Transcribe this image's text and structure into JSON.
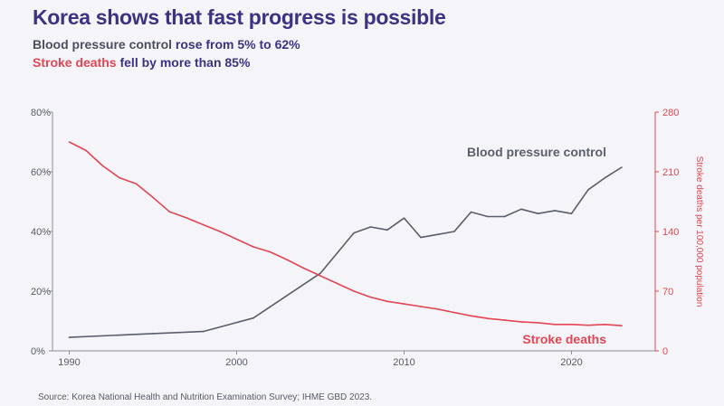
{
  "header": {
    "title": "Korea shows that fast progress is possible",
    "line1_series": "Blood pressure control",
    "line1_rest": " rose from 5% to 62%",
    "line2_series": "Stroke deaths",
    "line2_rest": " fell by more than 85%"
  },
  "source": "Source: Korea National Health and Nutrition Examination Survey; IHME GBD 2023.",
  "colors": {
    "bp": "#5a5e6c",
    "stroke": "#e24553",
    "title": "#3b3284",
    "axis": "#8a8d96"
  },
  "chart_data": {
    "type": "line",
    "title": "Korea shows that fast progress is possible",
    "xlim": [
      1989,
      2025
    ],
    "x_ticks": [
      1990,
      2000,
      2010,
      2020
    ],
    "y_left": {
      "label": "",
      "lim": [
        0,
        80
      ],
      "ticks": [
        0,
        20,
        40,
        60,
        80
      ],
      "unit": "%"
    },
    "y_right": {
      "label": "Stroke deaths per 100,000 population",
      "lim": [
        0,
        280
      ],
      "ticks": [
        0,
        70,
        140,
        210,
        280
      ]
    },
    "series": [
      {
        "name": "Blood pressure control",
        "axis": "left",
        "points": [
          [
            1990,
            4.5
          ],
          [
            1995,
            5.8
          ],
          [
            1998,
            6.5
          ],
          [
            2001,
            11
          ],
          [
            2005,
            26
          ],
          [
            2007,
            39.5
          ],
          [
            2008,
            41.5
          ],
          [
            2009,
            40.5
          ],
          [
            2010,
            44.5
          ],
          [
            2011,
            38
          ],
          [
            2012,
            39
          ],
          [
            2013,
            40
          ],
          [
            2014,
            46.5
          ],
          [
            2015,
            45
          ],
          [
            2016,
            45
          ],
          [
            2017,
            47.5
          ],
          [
            2018,
            46
          ],
          [
            2019,
            47
          ],
          [
            2020,
            46
          ],
          [
            2021,
            54
          ],
          [
            2022,
            58
          ],
          [
            2023,
            61.5
          ]
        ]
      },
      {
        "name": "Stroke deaths",
        "axis": "right",
        "points": [
          [
            1990,
            245
          ],
          [
            1991,
            235
          ],
          [
            1992,
            217
          ],
          [
            1993,
            203
          ],
          [
            1994,
            196
          ],
          [
            1995,
            180
          ],
          [
            1996,
            163
          ],
          [
            1997,
            156
          ],
          [
            1998,
            148
          ],
          [
            1999,
            140
          ],
          [
            2000,
            131
          ],
          [
            2001,
            122
          ],
          [
            2002,
            116
          ],
          [
            2003,
            107
          ],
          [
            2004,
            97
          ],
          [
            2005,
            88
          ],
          [
            2006,
            79
          ],
          [
            2007,
            70
          ],
          [
            2008,
            63
          ],
          [
            2009,
            58
          ],
          [
            2010,
            55
          ],
          [
            2011,
            52
          ],
          [
            2012,
            49
          ],
          [
            2013,
            45
          ],
          [
            2014,
            41
          ],
          [
            2015,
            38
          ],
          [
            2016,
            36
          ],
          [
            2017,
            34
          ],
          [
            2018,
            33
          ],
          [
            2019,
            31
          ],
          [
            2020,
            31
          ],
          [
            2021,
            30
          ],
          [
            2022,
            31
          ],
          [
            2023,
            29.5
          ]
        ]
      }
    ]
  }
}
